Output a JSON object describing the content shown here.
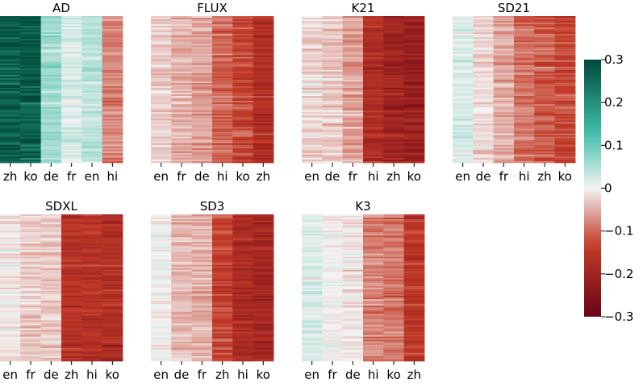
{
  "chart_data": {
    "type": "heatmap",
    "colorbar": {
      "min": -0.3,
      "max": 0.3,
      "tick_values": [
        0.3,
        0.2,
        0.1,
        0,
        -0.1,
        -0.2,
        -0.3
      ],
      "tick_labels": [
        "0.3",
        "0.2",
        "0.1",
        "0",
        "−0.1",
        "−0.2",
        "−0.3"
      ],
      "colors": {
        "high": "#00493a",
        "mid": "#f4f3f3",
        "low": "#6a0317"
      }
    },
    "panels": [
      {
        "title": "AD",
        "columns": [
          "zh",
          "ko",
          "de",
          "fr",
          "en",
          "hi"
        ],
        "column_means": [
          0.27,
          0.27,
          0.06,
          0.02,
          0.04,
          -0.08
        ]
      },
      {
        "title": "FLUX",
        "columns": [
          "en",
          "fr",
          "de",
          "hi",
          "ko",
          "zh"
        ],
        "column_means": [
          -0.03,
          -0.05,
          -0.06,
          -0.1,
          -0.13,
          -0.17
        ]
      },
      {
        "title": "K21",
        "columns": [
          "en",
          "de",
          "fr",
          "hi",
          "zh",
          "ko"
        ],
        "column_means": [
          -0.02,
          -0.03,
          -0.06,
          -0.17,
          -0.2,
          -0.21
        ]
      },
      {
        "title": "SD21",
        "columns": [
          "en",
          "de",
          "fr",
          "hi",
          "zh",
          "ko"
        ],
        "column_means": [
          0.02,
          -0.02,
          -0.05,
          -0.09,
          -0.11,
          -0.13
        ]
      },
      {
        "title": "SDXL",
        "columns": [
          "en",
          "fr",
          "de",
          "zh",
          "hi",
          "ko"
        ],
        "column_means": [
          -0.01,
          -0.03,
          -0.03,
          -0.16,
          -0.16,
          -0.17
        ]
      },
      {
        "title": "SD3",
        "columns": [
          "en",
          "de",
          "fr",
          "zh",
          "hi",
          "ko"
        ],
        "column_means": [
          0.0,
          -0.04,
          -0.05,
          -0.13,
          -0.18,
          -0.19
        ]
      },
      {
        "title": "K3",
        "columns": [
          "en",
          "fr",
          "de",
          "hi",
          "ko",
          "zh"
        ],
        "column_means": [
          0.02,
          0.0,
          -0.01,
          -0.08,
          -0.09,
          -0.15
        ]
      }
    ]
  }
}
